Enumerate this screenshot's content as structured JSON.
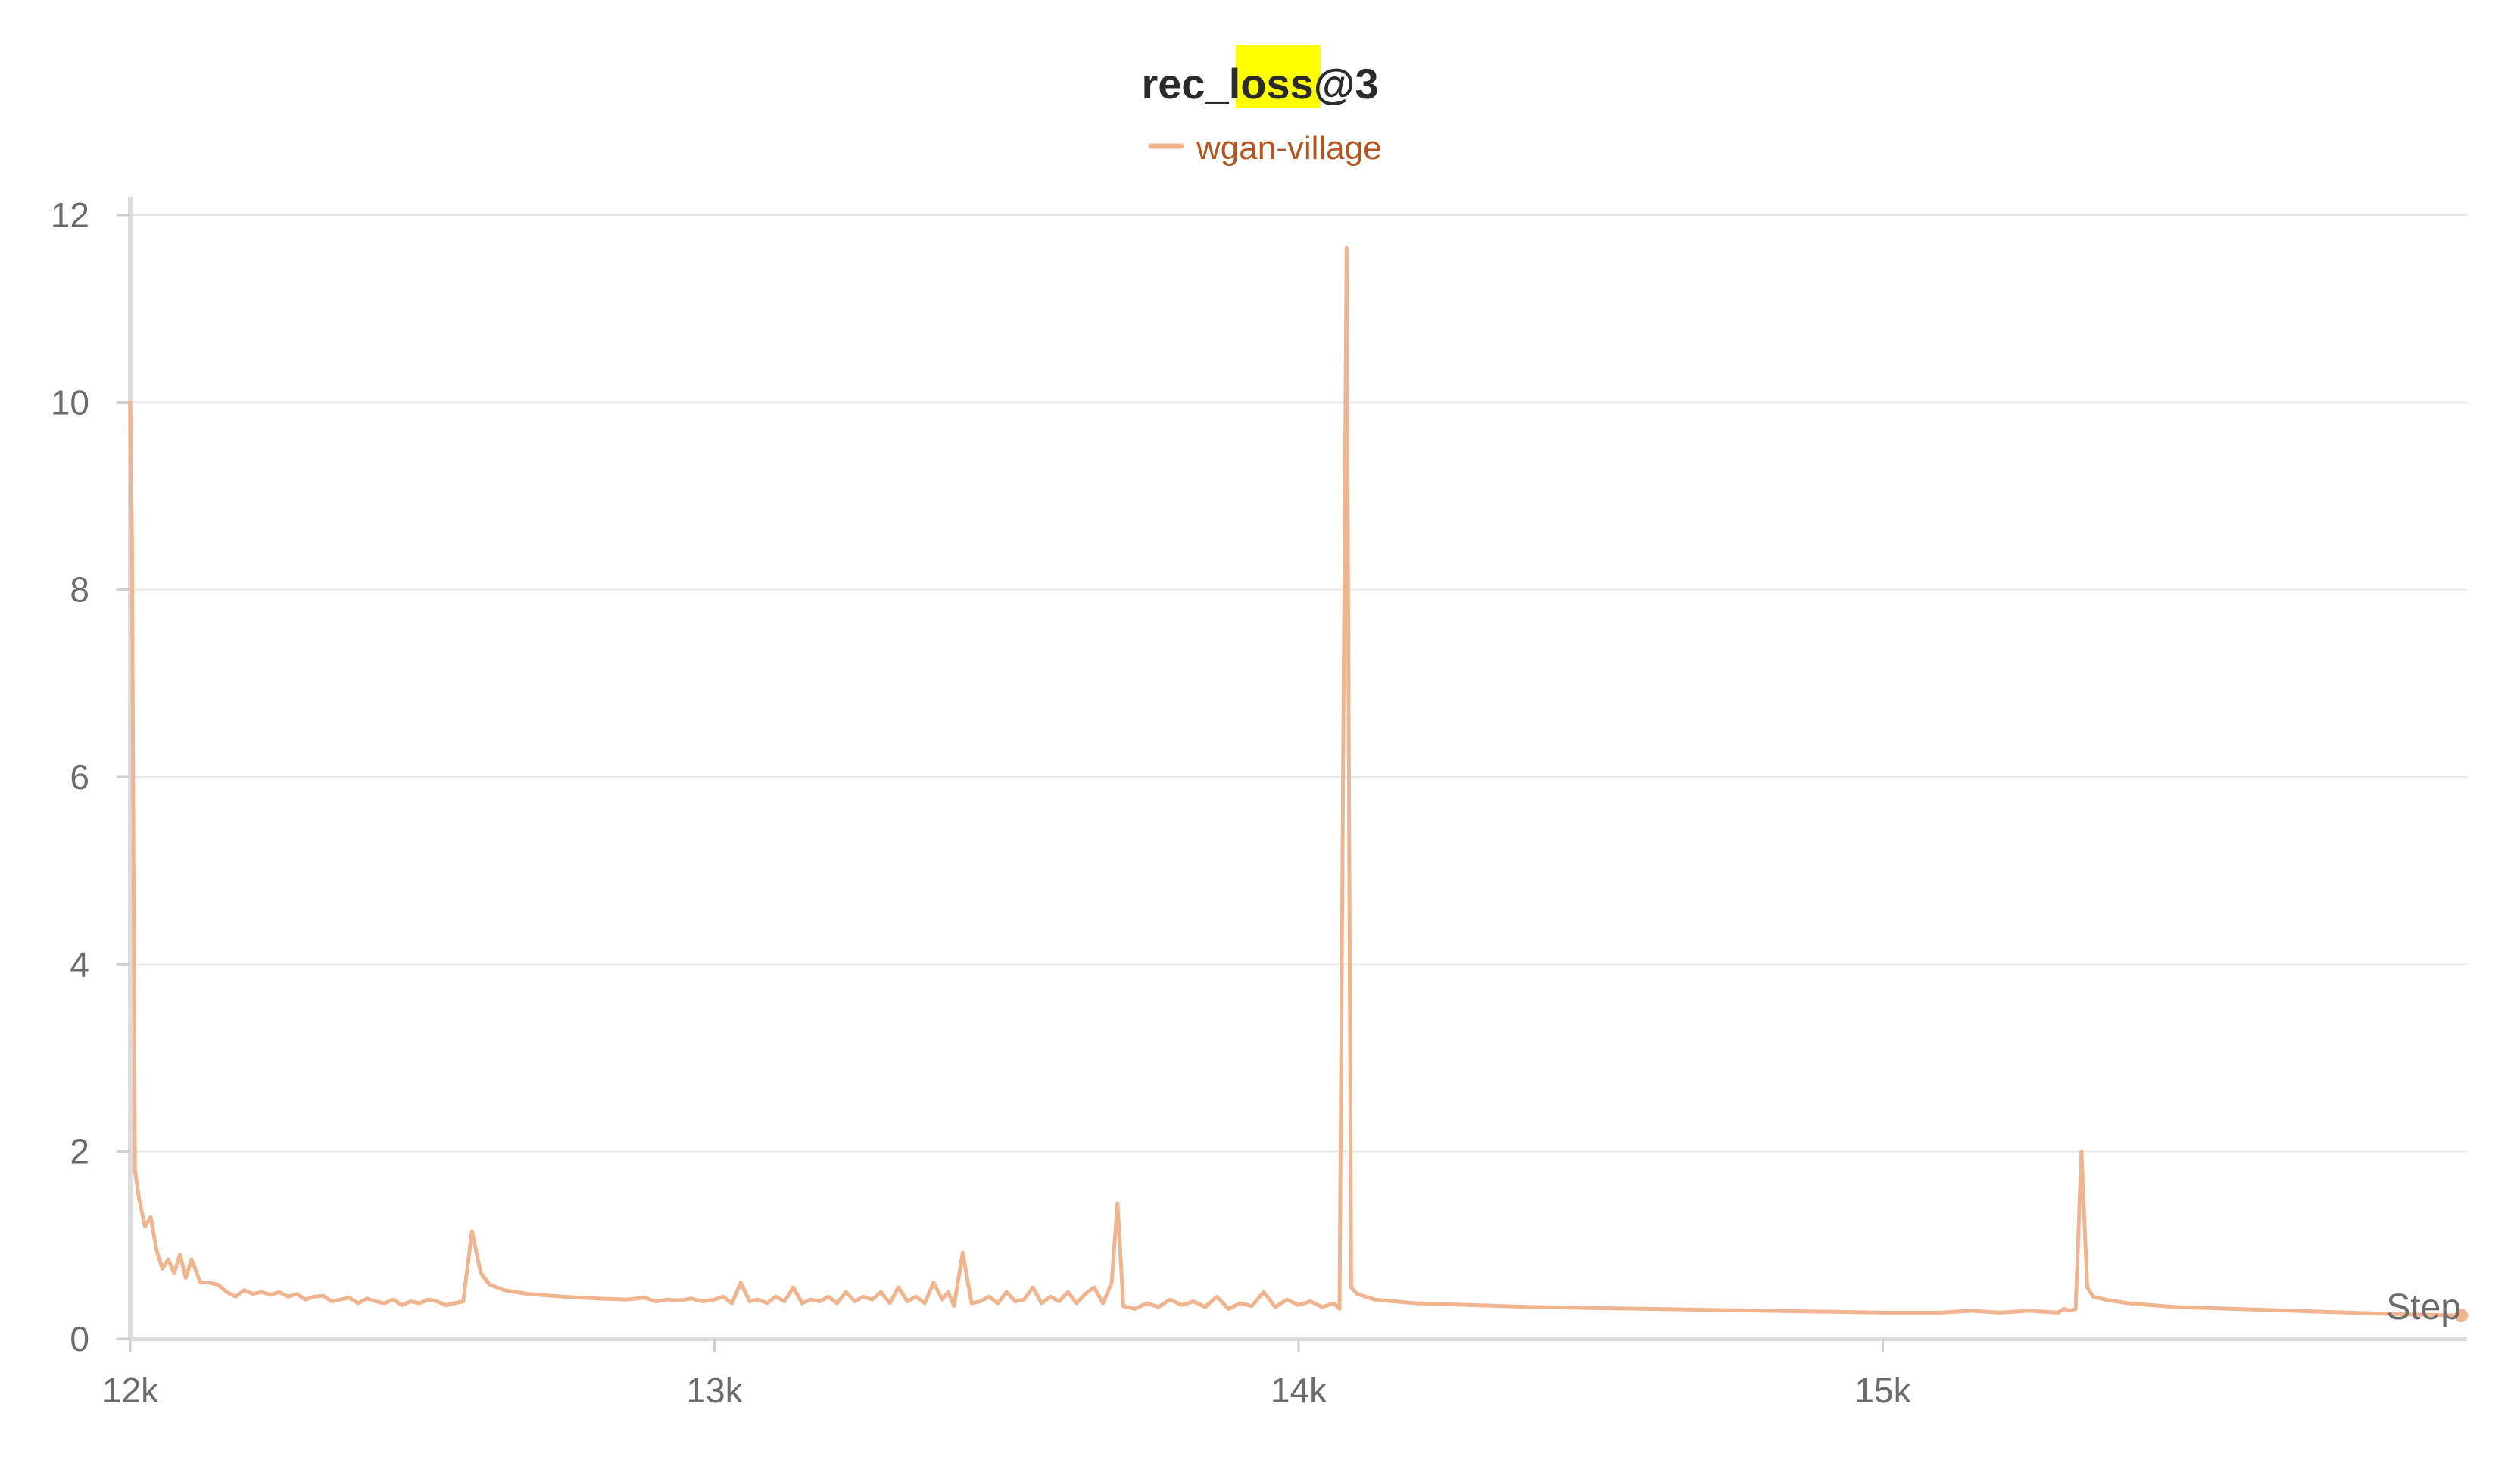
{
  "chart_data": {
    "type": "line",
    "title_prefix": "rec_",
    "title_highlight": "loss",
    "title_suffix": "@3",
    "highlight_color": "#ffff00",
    "xlabel": "Step",
    "ylabel": "",
    "xlim": [
      12000,
      16000
    ],
    "ylim": [
      0,
      12
    ],
    "x_ticks": [
      12000,
      13000,
      14000,
      15000
    ],
    "x_tick_labels": [
      "12k",
      "13k",
      "14k",
      "15k"
    ],
    "y_ticks": [
      0,
      2,
      4,
      6,
      8,
      10,
      12
    ],
    "y_tick_labels": [
      "0",
      "2",
      "4",
      "6",
      "8",
      "10",
      "12"
    ],
    "grid": true,
    "legend_position": "top-center",
    "series": [
      {
        "name": "wgan-village",
        "color": "#f0b48f",
        "x": [
          12000,
          12003,
          12008,
          12015,
          12025,
          12035,
          12045,
          12055,
          12065,
          12075,
          12085,
          12095,
          12105,
          12120,
          12135,
          12150,
          12165,
          12180,
          12195,
          12210,
          12225,
          12240,
          12255,
          12270,
          12285,
          12300,
          12315,
          12330,
          12345,
          12360,
          12375,
          12390,
          12405,
          12420,
          12435,
          12450,
          12465,
          12480,
          12495,
          12510,
          12525,
          12540,
          12555,
          12570,
          12585,
          12600,
          12615,
          12640,
          12680,
          12740,
          12800,
          12850,
          12880,
          12900,
          12920,
          12940,
          12960,
          12980,
          13000,
          13015,
          13030,
          13045,
          13060,
          13075,
          13090,
          13105,
          13120,
          13135,
          13150,
          13165,
          13180,
          13195,
          13210,
          13225,
          13240,
          13255,
          13270,
          13285,
          13300,
          13315,
          13330,
          13345,
          13360,
          13375,
          13390,
          13400,
          13410,
          13425,
          13440,
          13455,
          13470,
          13485,
          13500,
          13515,
          13530,
          13545,
          13560,
          13575,
          13590,
          13605,
          13620,
          13635,
          13650,
          13665,
          13680,
          13690,
          13700,
          13720,
          13740,
          13760,
          13780,
          13800,
          13820,
          13840,
          13860,
          13880,
          13900,
          13920,
          13940,
          13960,
          13980,
          14000,
          14020,
          14040,
          14060,
          14070,
          14082,
          14090,
          14100,
          14130,
          14200,
          14300,
          14400,
          14500,
          14600,
          14700,
          14800,
          14900,
          15000,
          15050,
          15100,
          15150,
          15200,
          15250,
          15300,
          15310,
          15320,
          15330,
          15340,
          15350,
          15360,
          15380,
          15420,
          15500,
          15600,
          15700,
          15800,
          15900,
          15990
        ],
        "y": [
          10.0,
          8.5,
          1.8,
          1.5,
          1.2,
          1.3,
          0.95,
          0.75,
          0.85,
          0.7,
          0.9,
          0.65,
          0.85,
          0.6,
          0.6,
          0.58,
          0.5,
          0.45,
          0.52,
          0.48,
          0.5,
          0.47,
          0.5,
          0.45,
          0.48,
          0.42,
          0.45,
          0.46,
          0.4,
          0.42,
          0.44,
          0.38,
          0.43,
          0.4,
          0.38,
          0.42,
          0.36,
          0.4,
          0.38,
          0.42,
          0.4,
          0.36,
          0.38,
          0.4,
          1.15,
          0.7,
          0.58,
          0.52,
          0.48,
          0.45,
          0.43,
          0.42,
          0.44,
          0.4,
          0.42,
          0.41,
          0.43,
          0.4,
          0.42,
          0.45,
          0.38,
          0.6,
          0.4,
          0.42,
          0.38,
          0.45,
          0.4,
          0.55,
          0.38,
          0.42,
          0.4,
          0.45,
          0.38,
          0.5,
          0.4,
          0.45,
          0.42,
          0.5,
          0.38,
          0.55,
          0.4,
          0.45,
          0.38,
          0.6,
          0.42,
          0.5,
          0.35,
          0.92,
          0.38,
          0.4,
          0.45,
          0.38,
          0.5,
          0.4,
          0.42,
          0.55,
          0.38,
          0.45,
          0.4,
          0.5,
          0.38,
          0.48,
          0.55,
          0.38,
          0.6,
          1.45,
          0.35,
          0.32,
          0.38,
          0.34,
          0.42,
          0.36,
          0.4,
          0.34,
          0.45,
          0.32,
          0.38,
          0.35,
          0.5,
          0.34,
          0.42,
          0.36,
          0.4,
          0.34,
          0.38,
          0.32,
          11.65,
          0.55,
          0.48,
          0.42,
          0.38,
          0.36,
          0.34,
          0.33,
          0.32,
          0.31,
          0.3,
          0.29,
          0.28,
          0.28,
          0.28,
          0.3,
          0.28,
          0.3,
          0.28,
          0.32,
          0.3,
          0.32,
          2.0,
          0.55,
          0.45,
          0.42,
          0.38,
          0.34,
          0.32,
          0.3,
          0.28,
          0.26,
          0.25
        ]
      }
    ]
  }
}
